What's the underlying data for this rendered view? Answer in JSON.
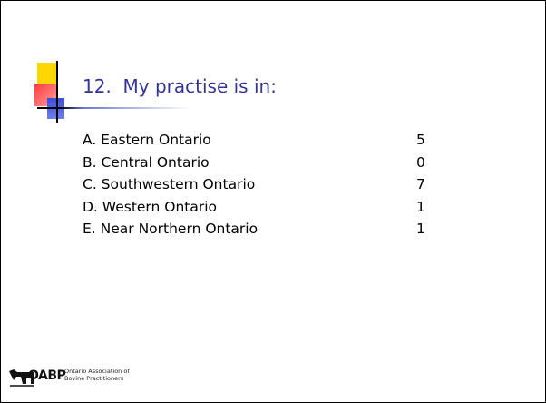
{
  "slide": {
    "title": "12.  My practise is in:",
    "items": [
      {
        "label": "A. Eastern Ontario",
        "count": "5"
      },
      {
        "label": "B. Central Ontario",
        "count": "0"
      },
      {
        "label": "C. Southwestern Ontario",
        "count": "7"
      },
      {
        "label": "D. Western Ontario",
        "count": "1"
      },
      {
        "label": "E. Near Northern Ontario",
        "count": "1"
      }
    ],
    "logo": {
      "abbr": "OABP",
      "name_lines": [
        "Ontario Association of",
        "Bovine Practitioners"
      ]
    }
  }
}
